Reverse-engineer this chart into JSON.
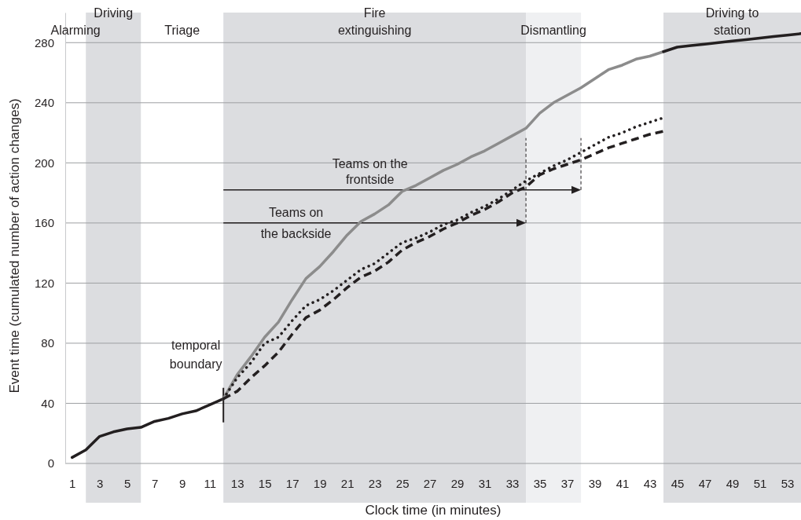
{
  "chart_data": {
    "type": "line",
    "xlabel": "Clock time (in minutes)",
    "ylabel": "Event time (cumulated number of action changes)",
    "xlim": [
      0.5,
      54
    ],
    "xticks": [
      1,
      3,
      5,
      7,
      9,
      11,
      13,
      15,
      17,
      19,
      21,
      23,
      25,
      27,
      29,
      31,
      33,
      35,
      37,
      39,
      41,
      43,
      45,
      47,
      49,
      51,
      53
    ],
    "ylim": [
      0,
      300
    ],
    "yticks": [
      0,
      40,
      80,
      120,
      160,
      200,
      240,
      280
    ],
    "grid": "y",
    "marker": "none",
    "series": [
      {
        "color": "#231f20",
        "line_style": "solid",
        "x": [
          1,
          2,
          3,
          4,
          5,
          6,
          7,
          8,
          9,
          10,
          11,
          12
        ],
        "values": [
          4,
          9,
          18,
          21,
          23,
          24,
          28,
          30,
          33,
          35,
          39,
          43
        ]
      },
      {
        "color": "#8c8c8c",
        "line_style": "solid",
        "x": [
          12,
          13,
          14,
          15,
          16,
          17,
          18,
          19,
          20,
          21,
          22,
          23,
          24,
          25,
          26,
          27,
          28,
          29,
          30,
          31,
          32,
          33,
          34,
          35,
          36,
          37,
          38,
          39,
          40,
          41,
          42,
          43,
          44
        ],
        "values": [
          43,
          59,
          71,
          84,
          94,
          109,
          123,
          131,
          141,
          152,
          161,
          166,
          172,
          181,
          185,
          190,
          195,
          199,
          204,
          208,
          213,
          218,
          223,
          233,
          240,
          245,
          250,
          256,
          262,
          265,
          269,
          271,
          274
        ]
      },
      {
        "color": "#231f20",
        "line_style": "dotted",
        "x": [
          12,
          13,
          14,
          15,
          16,
          17,
          18,
          19,
          20,
          21,
          22,
          23,
          24,
          25,
          26,
          27,
          28,
          29,
          30,
          31,
          32,
          33,
          34,
          35,
          36,
          37,
          38,
          39,
          40,
          41,
          42,
          43,
          44
        ],
        "values": [
          43,
          57,
          67,
          80,
          84,
          95,
          105,
          109,
          115,
          122,
          129,
          133,
          140,
          147,
          150,
          154,
          159,
          162,
          167,
          171,
          176,
          182,
          188,
          193,
          198,
          202,
          207,
          212,
          217,
          220,
          224,
          227,
          230
        ]
      },
      {
        "color": "#231f20",
        "line_style": "dashed",
        "x": [
          12,
          13,
          14,
          15,
          16,
          17,
          18,
          19,
          20,
          21,
          22,
          23,
          24,
          25,
          26,
          27,
          28,
          29,
          30,
          31,
          32,
          33,
          34,
          35,
          36,
          37,
          38,
          39,
          40,
          41,
          42,
          43,
          44
        ],
        "values": [
          43,
          48,
          57,
          65,
          74,
          86,
          97,
          102,
          109,
          117,
          124,
          128,
          134,
          142,
          147,
          151,
          156,
          160,
          165,
          169,
          174,
          180,
          184,
          192,
          196,
          199,
          202,
          206,
          210,
          213,
          216,
          219,
          221
        ]
      },
      {
        "color": "#231f20",
        "line_style": "solid",
        "x": [
          44,
          45,
          46,
          47,
          48,
          49,
          50,
          51,
          52,
          53,
          54
        ],
        "values": [
          274,
          277,
          278,
          279,
          280,
          281,
          282,
          283,
          284,
          285,
          286
        ]
      }
    ],
    "ref_lines": [
      {
        "axis": "y",
        "value": 182,
        "label": "Teams on the frontside"
      },
      {
        "axis": "y",
        "value": 160,
        "label": "Teams on the backside"
      },
      {
        "axis": "x",
        "value": 38,
        "line_style": "dashed"
      },
      {
        "axis": "x",
        "value": 34,
        "line_style": "dashed"
      }
    ],
    "bands": [
      {
        "axis": "x",
        "from": 2,
        "to": 6,
        "label": "Driving",
        "color": "#dcdde0"
      },
      {
        "axis": "x",
        "from": 12,
        "to": 34,
        "label": "Fire extinguishing",
        "color": "#dcdde0"
      },
      {
        "axis": "x",
        "from": 34,
        "to": 38,
        "label": "Dismantling",
        "color": "#eff0f2"
      },
      {
        "axis": "x",
        "from": 44,
        "to": 54,
        "label": "Driving to station",
        "color": "#dcdde0"
      }
    ],
    "annotations": [
      {
        "text": "temporal boundary",
        "x": 12,
        "y": 43
      },
      "Alarming",
      "Triage"
    ]
  }
}
